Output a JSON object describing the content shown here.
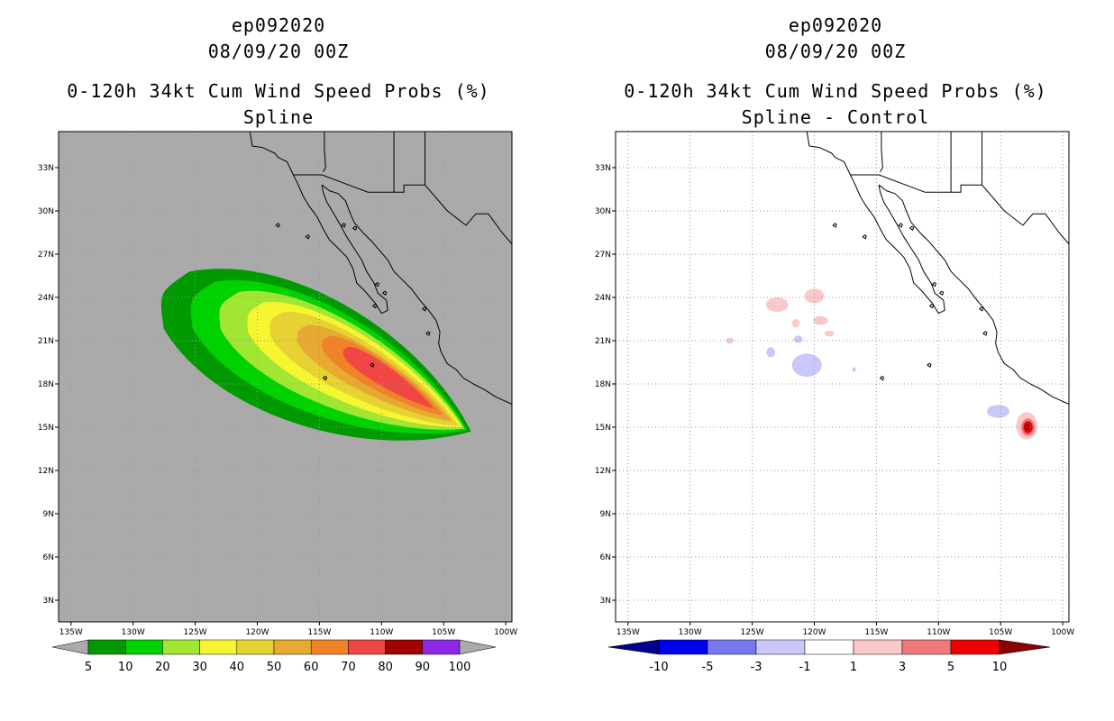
{
  "chart_data": [
    {
      "type": "contour-map",
      "storm_id": "ep092020",
      "datetime": "08/09/20 00Z",
      "title": "0-120h 34kt Cum Wind Speed Probs (%)",
      "subtitle": "Spline",
      "background": "#aaaaaa",
      "lon_ticks": [
        "135W",
        "130W",
        "125W",
        "120W",
        "115W",
        "110W",
        "105W",
        "100W"
      ],
      "lat_ticks": [
        "33N",
        "30N",
        "27N",
        "24N",
        "21N",
        "18N",
        "15N",
        "12N",
        "9N",
        "6N",
        "3N"
      ],
      "lon_range": [
        -136,
        -99.5
      ],
      "lat_range": [
        1.5,
        35.5
      ],
      "grid": true,
      "colorbar": {
        "labels": [
          "5",
          "10",
          "20",
          "30",
          "40",
          "50",
          "60",
          "70",
          "80",
          "90",
          "100"
        ],
        "colors": [
          "#009a00",
          "#00d200",
          "#a0e632",
          "#f5f532",
          "#e6d232",
          "#e6aa32",
          "#f08228",
          "#f04646",
          "#a00000",
          "#8c28e6"
        ]
      },
      "contours": [
        {
          "level": "5-10",
          "color": "#009a00",
          "shape": {
            "type": "teardrop",
            "tail": [
              -120.5,
              21.5
            ],
            "tip": [
              -102.8,
              14.7
            ],
            "half_width": 5.4
          }
        },
        {
          "level": "10-20",
          "color": "#00d200",
          "shape": {
            "type": "teardrop",
            "tail": [
              -119.5,
              21.5
            ],
            "tip": [
              -103.1,
              14.8
            ],
            "half_width": 4.4
          }
        },
        {
          "level": "20-30",
          "color": "#a0e632",
          "shape": {
            "type": "teardrop",
            "tail": [
              -118.3,
              21.4
            ],
            "tip": [
              -103.3,
              14.9
            ],
            "half_width": 3.6
          }
        },
        {
          "level": "30-40",
          "color": "#f5f532",
          "shape": {
            "type": "teardrop",
            "tail": [
              -117.0,
              21.2
            ],
            "tip": [
              -103.5,
              15.0
            ],
            "half_width": 2.9
          }
        },
        {
          "level": "40-50",
          "color": "#e6d232",
          "shape": {
            "type": "teardrop",
            "tail": [
              -116.0,
              21.0
            ],
            "tip": [
              -103.8,
              15.1
            ],
            "half_width": 2.3
          }
        },
        {
          "level": "50-60",
          "color": "#e6aa32",
          "shape": {
            "type": "teardrop",
            "tail": [
              -114.6,
              20.6
            ],
            "tip": [
              -104.3,
              15.4
            ],
            "half_width": 1.7
          }
        },
        {
          "level": "60-70",
          "color": "#f08228",
          "shape": {
            "type": "teardrop",
            "tail": [
              -113.2,
              20.2
            ],
            "tip": [
              -105.0,
              15.8
            ],
            "half_width": 1.25
          }
        },
        {
          "level": "70-80",
          "color": "#f04646",
          "shape": {
            "type": "teardrop",
            "tail": [
              -112.0,
              19.8
            ],
            "tip": [
              -105.8,
              16.3
            ],
            "half_width": 0.85
          }
        }
      ]
    },
    {
      "type": "contour-map",
      "storm_id": "ep092020",
      "datetime": "08/09/20 00Z",
      "title": "0-120h 34kt Cum Wind Speed Probs (%)",
      "subtitle": "Spline - Control",
      "background": "#ffffff",
      "lon_ticks": [
        "135W",
        "130W",
        "125W",
        "120W",
        "115W",
        "110W",
        "105W",
        "100W"
      ],
      "lat_ticks": [
        "33N",
        "30N",
        "27N",
        "24N",
        "21N",
        "18N",
        "15N",
        "12N",
        "9N",
        "6N",
        "3N"
      ],
      "lon_range": [
        -136,
        -99.5
      ],
      "lat_range": [
        1.5,
        35.5
      ],
      "grid": true,
      "colorbar": {
        "labels": [
          "-10",
          "-5",
          "-3",
          "-1",
          "1",
          "3",
          "5",
          "10"
        ],
        "colors": [
          "#00008c",
          "#0000f0",
          "#7878f0",
          "#c8c8fa",
          "#ffffff",
          "#fac8c8",
          "#f07878",
          "#f00000",
          "#8c0000"
        ]
      },
      "contours": [
        {
          "level": "1-3",
          "color": "#fac8c8",
          "shape": {
            "type": "blob",
            "center": [
              -120.0,
              24.1
            ],
            "rx": 0.8,
            "ry": 0.5
          }
        },
        {
          "level": "1-3",
          "color": "#fac8c8",
          "shape": {
            "type": "blob",
            "center": [
              -123.0,
              23.5
            ],
            "rx": 0.9,
            "ry": 0.5
          }
        },
        {
          "level": "1-3",
          "color": "#fac8c8",
          "shape": {
            "type": "blob",
            "center": [
              -119.5,
              22.4
            ],
            "rx": 0.6,
            "ry": 0.3
          }
        },
        {
          "level": "1-3",
          "color": "#fac8c8",
          "shape": {
            "type": "blob",
            "center": [
              -121.5,
              22.2
            ],
            "rx": 0.3,
            "ry": 0.3
          }
        },
        {
          "level": "1-3",
          "color": "#fac8c8",
          "shape": {
            "type": "blob",
            "center": [
              -118.8,
              21.5
            ],
            "rx": 0.4,
            "ry": 0.2
          }
        },
        {
          "level": "1-3",
          "color": "#fac8c8",
          "shape": {
            "type": "blob",
            "center": [
              -126.8,
              21.0
            ],
            "rx": 0.3,
            "ry": 0.2
          }
        },
        {
          "level": "-1--3",
          "color": "#c8c8fa",
          "shape": {
            "type": "blob",
            "center": [
              -120.6,
              19.3
            ],
            "rx": 1.2,
            "ry": 0.8
          }
        },
        {
          "level": "-1--3",
          "color": "#c8c8fa",
          "shape": {
            "type": "blob",
            "center": [
              -123.5,
              20.2
            ],
            "rx": 0.35,
            "ry": 0.35
          }
        },
        {
          "level": "-1--3",
          "color": "#c8c8fa",
          "shape": {
            "type": "blob",
            "center": [
              -121.3,
              21.1
            ],
            "rx": 0.35,
            "ry": 0.25
          }
        },
        {
          "level": "-1--3",
          "color": "#c8c8fa",
          "shape": {
            "type": "blob",
            "center": [
              -116.8,
              19.0
            ],
            "rx": 0.15,
            "ry": 0.15
          }
        },
        {
          "level": "-1--3",
          "color": "#c8c8fa",
          "shape": {
            "type": "blob",
            "center": [
              -105.2,
              16.1
            ],
            "rx": 0.9,
            "ry": 0.45
          }
        },
        {
          "level": "1-3",
          "color": "#fac8c8",
          "shape": {
            "type": "blob",
            "center": [
              -102.9,
              15.1
            ],
            "rx": 0.85,
            "ry": 0.95
          }
        },
        {
          "level": "3-5",
          "color": "#f07878",
          "shape": {
            "type": "blob",
            "center": [
              -102.8,
              15.0
            ],
            "rx": 0.55,
            "ry": 0.6
          }
        },
        {
          "level": "5-10",
          "color": "#f00000",
          "shape": {
            "type": "blob",
            "center": [
              -102.8,
              15.0
            ],
            "rx": 0.38,
            "ry": 0.42
          }
        },
        {
          "level": ">10",
          "color": "#8c0000",
          "shape": {
            "type": "blob",
            "center": [
              -102.85,
              15.0
            ],
            "rx": 0.18,
            "ry": 0.22
          }
        }
      ]
    }
  ]
}
